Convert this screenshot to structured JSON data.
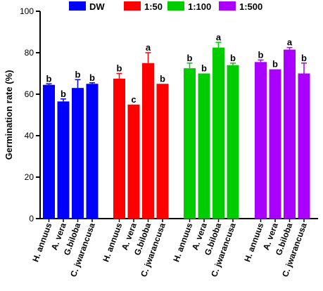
{
  "chart_data": {
    "type": "bar",
    "ylabel": "Germination rate (%)",
    "ylim": [
      0,
      100
    ],
    "yticks": [
      0,
      20,
      40,
      60,
      80,
      100
    ],
    "categories": [
      "H. annuus",
      "A. vera",
      "G.biloba",
      "C. jwarancusa"
    ],
    "legend_position": "top",
    "series": [
      {
        "name": "DW",
        "color": "#0000ff",
        "values": [
          64.5,
          56.5,
          63,
          65
        ],
        "errors": [
          0.5,
          1.2,
          4,
          0.5
        ],
        "letters": [
          "b",
          "b",
          "b",
          "b"
        ]
      },
      {
        "name": "1:50",
        "color": "#ff0000",
        "values": [
          67.5,
          55,
          75,
          65
        ],
        "errors": [
          2.5,
          0,
          5,
          0
        ],
        "letters": [
          "b",
          "c",
          "a",
          "b"
        ]
      },
      {
        "name": "1:100",
        "color": "#00cc00",
        "values": [
          72.5,
          70,
          82.5,
          74
        ],
        "errors": [
          2.5,
          0,
          2.5,
          1
        ],
        "letters": [
          "b",
          "b",
          "a",
          "b"
        ]
      },
      {
        "name": "1:500",
        "color": "#aa00ff",
        "values": [
          75.5,
          72,
          81.5,
          70
        ],
        "errors": [
          1,
          0,
          1,
          5
        ],
        "letters": [
          "b",
          "b",
          "a",
          "b"
        ]
      }
    ]
  }
}
